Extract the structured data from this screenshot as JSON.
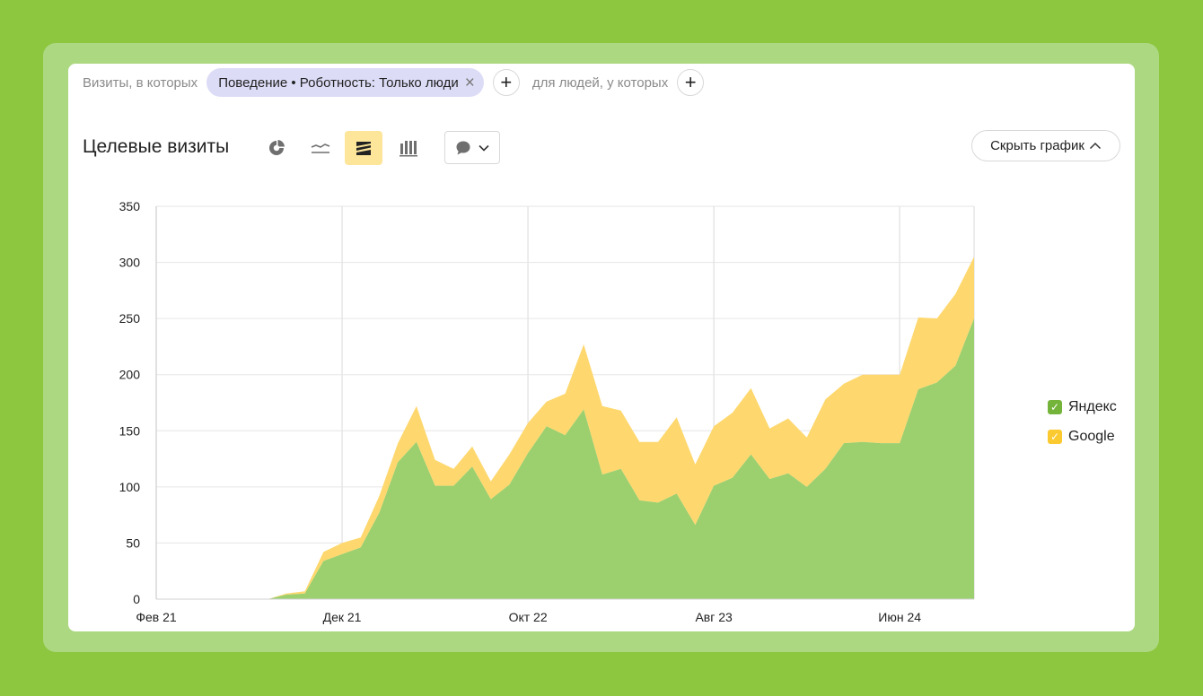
{
  "filters": {
    "prefix": "Визиты, в которых",
    "chip_label": "Поведение • Роботность: Только люди",
    "chip_close": "×",
    "add_symbol": "+",
    "people_label": "для людей, у которых"
  },
  "header": {
    "title": "Целевые визиты",
    "view_buttons": [
      "pie-chart-icon",
      "line-chart-icon",
      "stacked-area-icon",
      "bar-chart-icon"
    ],
    "active_view": "stacked-area-icon",
    "annotation_dropdown_icon": "comment-icon",
    "hide_chart_label": "Скрыть график"
  },
  "colors": {
    "yandex": "#9ccf6e",
    "google": "#fed86e",
    "legend_yandex": "#75b43b",
    "legend_google": "#fbc930",
    "active_view_bg": "#fde59a",
    "grid": "#e6e6e6"
  },
  "chart_data": {
    "type": "area",
    "stacked": true,
    "x_labels": [
      "Фев 21",
      "Дек 21",
      "Окт 22",
      "Авг 23",
      "Июн 24"
    ],
    "x_label_indices": [
      0,
      10,
      20,
      30,
      40
    ],
    "ylim": [
      0,
      350
    ],
    "yticks": [
      0,
      50,
      100,
      150,
      200,
      250,
      300,
      350
    ],
    "grid": true,
    "legend_position": "right",
    "series": [
      {
        "name": "Яндекс",
        "values": [
          0,
          0,
          0,
          0,
          0,
          0,
          0,
          4,
          5,
          34,
          40,
          46,
          77,
          122,
          140,
          101,
          101,
          118,
          89,
          102,
          130,
          154,
          146,
          169,
          111,
          116,
          88,
          86,
          94,
          66,
          101,
          108,
          129,
          107,
          112,
          100,
          116,
          139,
          140,
          139,
          139,
          187,
          193,
          208,
          250
        ]
      },
      {
        "name": "Google",
        "values": [
          0,
          0,
          0,
          0,
          0,
          0,
          0,
          1,
          2,
          8,
          10,
          9,
          15,
          17,
          32,
          23,
          15,
          18,
          16,
          27,
          27,
          22,
          37,
          58,
          61,
          52,
          52,
          54,
          68,
          54,
          53,
          58,
          59,
          45,
          49,
          44,
          62,
          53,
          60,
          61,
          61,
          64,
          57,
          64,
          55
        ]
      }
    ]
  }
}
